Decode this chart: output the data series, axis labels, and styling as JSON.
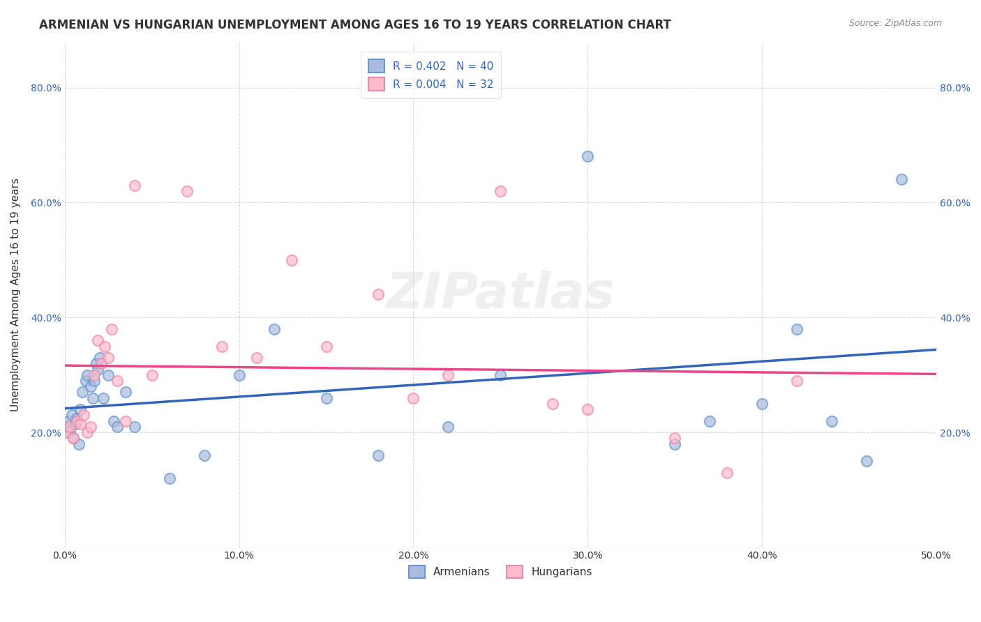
{
  "title": "ARMENIAN VS HUNGARIAN UNEMPLOYMENT AMONG AGES 16 TO 19 YEARS CORRELATION CHART",
  "source": "Source: ZipAtlas.com",
  "xlabel": "",
  "ylabel": "Unemployment Among Ages 16 to 19 years",
  "xlim": [
    0.0,
    0.5
  ],
  "ylim": [
    0.0,
    0.88
  ],
  "xticks": [
    0.0,
    0.1,
    0.2,
    0.3,
    0.4,
    0.5
  ],
  "yticks": [
    0.0,
    0.2,
    0.4,
    0.6,
    0.8
  ],
  "xtick_labels": [
    "0.0%",
    "10.0%",
    "20.0%",
    "30.0%",
    "40.0%",
    "50.0%"
  ],
  "ytick_labels": [
    "",
    "20.0%",
    "40.0%",
    "60.0%",
    "80.0%"
  ],
  "background_color": "#ffffff",
  "plot_bg_color": "#ffffff",
  "grid_color": "#cccccc",
  "armenians_color": "#6699cc",
  "armenians_fill": "#aabbdd",
  "hungarians_color": "#ee88aa",
  "hungarians_fill": "#ffbbcc",
  "blue_line_color": "#3366bb",
  "pink_line_color": "#ee4488",
  "legend_R1": "R = 0.402",
  "legend_N1": "N = 40",
  "legend_R2": "R = 0.004",
  "legend_N2": "N = 32",
  "watermark": "ZIPatlas",
  "armenians_x": [
    0.001,
    0.002,
    0.003,
    0.004,
    0.005,
    0.006,
    0.007,
    0.008,
    0.009,
    0.01,
    0.012,
    0.013,
    0.015,
    0.016,
    0.017,
    0.018,
    0.019,
    0.02,
    0.022,
    0.025,
    0.028,
    0.03,
    0.035,
    0.04,
    0.06,
    0.08,
    0.1,
    0.12,
    0.15,
    0.18,
    0.22,
    0.25,
    0.3,
    0.35,
    0.37,
    0.4,
    0.42,
    0.44,
    0.46,
    0.48
  ],
  "armenians_y": [
    0.21,
    0.22,
    0.2,
    0.23,
    0.19,
    0.215,
    0.225,
    0.18,
    0.24,
    0.27,
    0.29,
    0.3,
    0.28,
    0.26,
    0.29,
    0.32,
    0.31,
    0.33,
    0.26,
    0.3,
    0.22,
    0.21,
    0.27,
    0.21,
    0.12,
    0.16,
    0.3,
    0.38,
    0.26,
    0.16,
    0.21,
    0.3,
    0.68,
    0.18,
    0.22,
    0.25,
    0.38,
    0.22,
    0.15,
    0.64
  ],
  "hungarians_x": [
    0.001,
    0.003,
    0.005,
    0.007,
    0.009,
    0.011,
    0.013,
    0.015,
    0.017,
    0.019,
    0.021,
    0.023,
    0.025,
    0.027,
    0.03,
    0.035,
    0.04,
    0.05,
    0.07,
    0.09,
    0.11,
    0.13,
    0.15,
    0.18,
    0.2,
    0.22,
    0.25,
    0.28,
    0.3,
    0.35,
    0.38,
    0.42
  ],
  "hungarians_y": [
    0.2,
    0.21,
    0.19,
    0.22,
    0.215,
    0.23,
    0.2,
    0.21,
    0.3,
    0.36,
    0.32,
    0.35,
    0.33,
    0.38,
    0.29,
    0.22,
    0.63,
    0.3,
    0.62,
    0.35,
    0.33,
    0.5,
    0.35,
    0.44,
    0.26,
    0.3,
    0.62,
    0.25,
    0.24,
    0.19,
    0.13,
    0.29
  ]
}
